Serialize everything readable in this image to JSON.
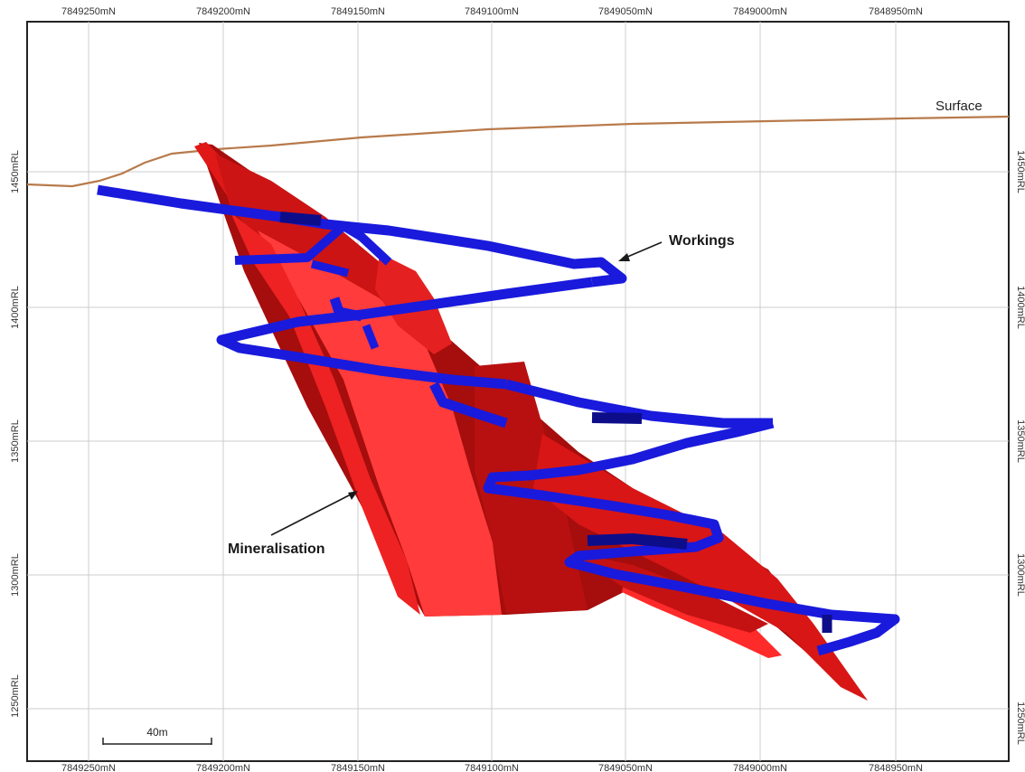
{
  "section": {
    "northings": [
      "7849250mN",
      "7849200mN",
      "7849150mN",
      "7849100mN",
      "7849050mN",
      "7849000mN",
      "7848950mN"
    ],
    "levels": [
      "1450mRL",
      "1400mRL",
      "1350mRL",
      "1300mRL",
      "1250mRL"
    ],
    "labels": {
      "surface": "Surface",
      "workings": "Workings",
      "mineralisation": "Mineralisation"
    },
    "scale_bar": {
      "label": "40m"
    },
    "colors": {
      "surface": "#b87a4b",
      "mineral_light": "#ff3b3b",
      "mineral_mid": "#e01818",
      "mineral_dark": "#a60d0d",
      "workings": "#1a1adc",
      "workings_dark": "#0d0d8a",
      "grid": "#cccccc",
      "frame": "#222222"
    }
  }
}
